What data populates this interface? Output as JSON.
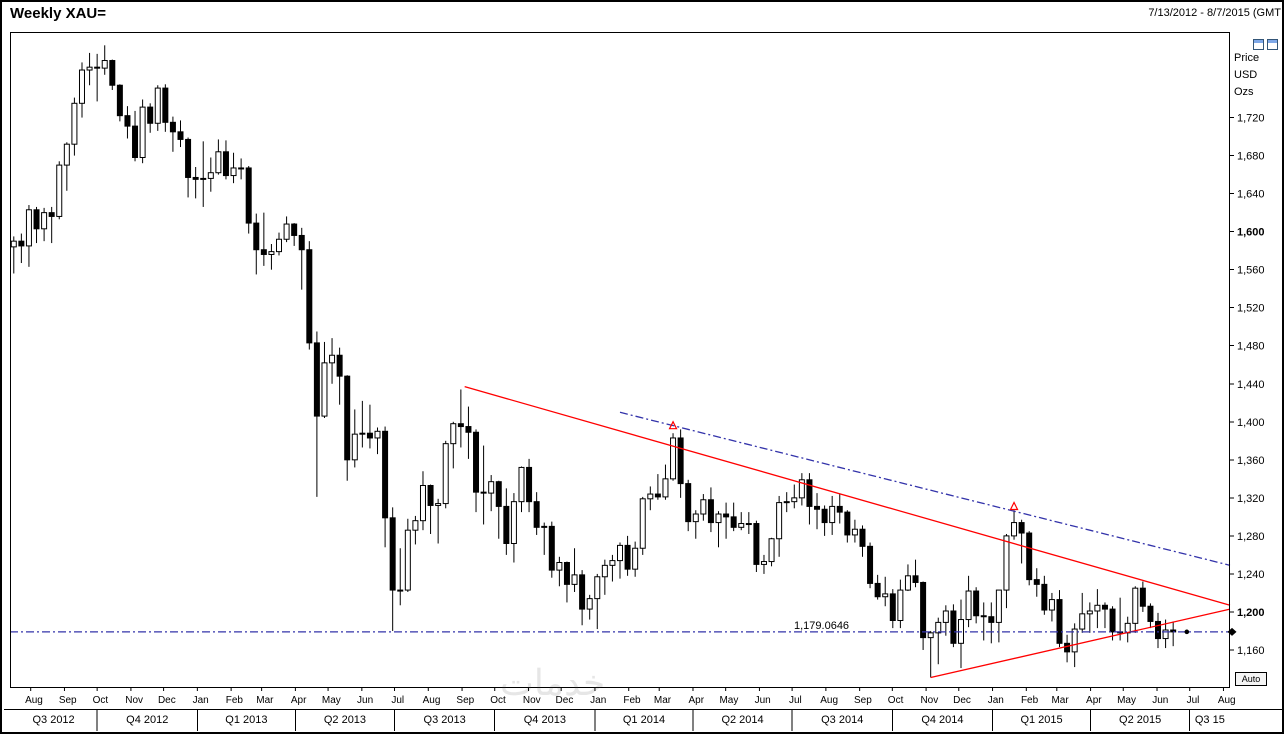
{
  "header": {
    "title": "Weekly XAU=",
    "date_range": "7/13/2012 - 8/7/2015 (GMT"
  },
  "right_axis": {
    "unit_labels": [
      "Price",
      "USD",
      "Ozs"
    ],
    "ticks": [
      {
        "label": "1,720",
        "value": 1720,
        "bold": false
      },
      {
        "label": "1,680",
        "value": 1680,
        "bold": false
      },
      {
        "label": "1,640",
        "value": 1640,
        "bold": false
      },
      {
        "label": "1,600",
        "value": 1600,
        "bold": true
      },
      {
        "label": "1,560",
        "value": 1560,
        "bold": false
      },
      {
        "label": "1,520",
        "value": 1520,
        "bold": false
      },
      {
        "label": "1,480",
        "value": 1480,
        "bold": false
      },
      {
        "label": "1,440",
        "value": 1440,
        "bold": false
      },
      {
        "label": "1,400",
        "value": 1400,
        "bold": false
      },
      {
        "label": "1,360",
        "value": 1360,
        "bold": false
      },
      {
        "label": "1,320",
        "value": 1320,
        "bold": false
      },
      {
        "label": "1,280",
        "value": 1280,
        "bold": false
      },
      {
        "label": "1,240",
        "value": 1240,
        "bold": false
      },
      {
        "label": "1,200",
        "value": 1200,
        "bold": true
      },
      {
        "label": "1,160",
        "value": 1160,
        "bold": false
      }
    ]
  },
  "x_axis": {
    "months": [
      "Aug",
      "Sep",
      "Oct",
      "Nov",
      "Dec",
      "Jan",
      "Feb",
      "Mar",
      "Apr",
      "May",
      "Jun",
      "Jul",
      "Aug",
      "Sep",
      "Oct",
      "Nov",
      "Dec",
      "Jan",
      "Feb",
      "Mar",
      "Apr",
      "May",
      "Jun",
      "Jul",
      "Aug",
      "Sep",
      "Oct",
      "Nov",
      "Dec",
      "Jan",
      "Feb",
      "Mar",
      "Apr",
      "May",
      "Jun",
      "Jul",
      "Aug"
    ],
    "quarters": [
      "Q3 2012",
      "Q4 2012",
      "Q1 2013",
      "Q2 2013",
      "Q3 2013",
      "Q4 2013",
      "Q1 2014",
      "Q2 2014",
      "Q3 2014",
      "Q4 2014",
      "Q1 2015",
      "Q2 2015",
      "Q3 15"
    ]
  },
  "controls": {
    "auto_label": "Auto"
  },
  "watermark_text": "خدمات",
  "colors": {
    "candle": "#000000",
    "trend_red": "#ff0000",
    "channel_blue": "#3333aa",
    "hline_blue": "#3333aa"
  },
  "chart_data": {
    "type": "candlestick",
    "title": "Weekly XAU=",
    "instrument": "XAU=",
    "interval": "weekly",
    "start_date": "2012-07-13",
    "end_date": "2015-08-07",
    "ylim": [
      1120,
      1810
    ],
    "x_total_weeks": 161,
    "horizontal_line": {
      "value": 1179.0646,
      "label": "1,179.0646"
    },
    "last_price": 1179.0646,
    "markers": [
      {
        "week": 87,
        "price": 1398,
        "shape": "red-arrow"
      },
      {
        "week": 132,
        "price": 1313,
        "shape": "red-arrow"
      }
    ],
    "trendlines": [
      {
        "label": "descending-resistance",
        "color": "red",
        "style": "solid",
        "from_week": 59.5,
        "from_price": 1437,
        "to_week": 160.5,
        "to_price": 1207
      },
      {
        "label": "ascending-support",
        "color": "red",
        "style": "solid",
        "from_week": 121,
        "from_price": 1131,
        "to_week": 160.5,
        "to_price": 1203
      },
      {
        "label": "descending-channel",
        "color": "blue",
        "style": "dash-dot",
        "from_week": 80,
        "from_price": 1410,
        "to_week": 160.5,
        "to_price": 1249
      }
    ],
    "ohlc": [
      [
        1584,
        1595,
        1556,
        1590
      ],
      [
        1590,
        1598,
        1567,
        1585
      ],
      [
        1585,
        1628,
        1563,
        1623
      ],
      [
        1623,
        1626,
        1588,
        1603
      ],
      [
        1603,
        1625,
        1590,
        1620
      ],
      [
        1620,
        1626,
        1588,
        1616
      ],
      [
        1616,
        1674,
        1613,
        1670
      ],
      [
        1670,
        1694,
        1643,
        1692
      ],
      [
        1692,
        1741,
        1680,
        1735
      ],
      [
        1735,
        1778,
        1720,
        1770
      ],
      [
        1770,
        1788,
        1754,
        1773
      ],
      [
        1773,
        1787,
        1737,
        1772
      ],
      [
        1772,
        1796,
        1765,
        1780
      ],
      [
        1780,
        1781,
        1749,
        1754
      ],
      [
        1754,
        1755,
        1716,
        1722
      ],
      [
        1722,
        1732,
        1698,
        1711
      ],
      [
        1711,
        1727,
        1674,
        1678
      ],
      [
        1678,
        1739,
        1672,
        1731
      ],
      [
        1731,
        1735,
        1704,
        1714
      ],
      [
        1714,
        1754,
        1706,
        1751
      ],
      [
        1751,
        1755,
        1705,
        1715
      ],
      [
        1715,
        1721,
        1684,
        1705
      ],
      [
        1705,
        1717,
        1689,
        1697
      ],
      [
        1697,
        1699,
        1636,
        1657
      ],
      [
        1657,
        1668,
        1635,
        1655
      ],
      [
        1655,
        1695,
        1626,
        1656
      ],
      [
        1656,
        1678,
        1642,
        1662
      ],
      [
        1662,
        1697,
        1660,
        1684
      ],
      [
        1684,
        1696,
        1655,
        1659
      ],
      [
        1659,
        1683,
        1651,
        1667
      ],
      [
        1667,
        1677,
        1655,
        1667
      ],
      [
        1667,
        1669,
        1598,
        1609
      ],
      [
        1609,
        1619,
        1555,
        1581
      ],
      [
        1581,
        1620,
        1564,
        1576
      ],
      [
        1576,
        1587,
        1560,
        1579
      ],
      [
        1579,
        1599,
        1575,
        1592
      ],
      [
        1592,
        1616,
        1589,
        1608
      ],
      [
        1608,
        1609,
        1585,
        1596
      ],
      [
        1596,
        1604,
        1539,
        1581
      ],
      [
        1581,
        1590,
        1476,
        1483
      ],
      [
        1483,
        1495,
        1321,
        1406
      ],
      [
        1406,
        1484,
        1404,
        1462
      ],
      [
        1462,
        1488,
        1440,
        1470
      ],
      [
        1470,
        1478,
        1418,
        1448
      ],
      [
        1448,
        1449,
        1338,
        1360
      ],
      [
        1360,
        1413,
        1352,
        1387
      ],
      [
        1387,
        1422,
        1373,
        1388
      ],
      [
        1388,
        1418,
        1372,
        1383
      ],
      [
        1383,
        1394,
        1366,
        1390
      ],
      [
        1390,
        1395,
        1268,
        1299
      ],
      [
        1299,
        1310,
        1180,
        1223
      ],
      [
        1223,
        1267,
        1207,
        1223
      ],
      [
        1223,
        1298,
        1221,
        1286
      ],
      [
        1286,
        1301,
        1271,
        1296
      ],
      [
        1296,
        1348,
        1286,
        1333
      ],
      [
        1333,
        1334,
        1282,
        1312
      ],
      [
        1312,
        1319,
        1272,
        1314
      ],
      [
        1314,
        1380,
        1309,
        1377
      ],
      [
        1377,
        1400,
        1351,
        1398
      ],
      [
        1398,
        1434,
        1373,
        1395
      ],
      [
        1395,
        1416,
        1361,
        1389
      ],
      [
        1389,
        1392,
        1305,
        1326
      ],
      [
        1326,
        1375,
        1292,
        1325
      ],
      [
        1325,
        1344,
        1306,
        1337
      ],
      [
        1337,
        1338,
        1277,
        1311
      ],
      [
        1311,
        1330,
        1260,
        1272
      ],
      [
        1272,
        1325,
        1252,
        1316
      ],
      [
        1316,
        1353,
        1305,
        1352
      ],
      [
        1352,
        1361,
        1305,
        1316
      ],
      [
        1316,
        1326,
        1281,
        1289
      ],
      [
        1289,
        1294,
        1260,
        1290
      ],
      [
        1290,
        1295,
        1236,
        1244
      ],
      [
        1244,
        1258,
        1227,
        1252
      ],
      [
        1252,
        1253,
        1210,
        1229
      ],
      [
        1229,
        1267,
        1221,
        1239
      ],
      [
        1239,
        1244,
        1186,
        1203
      ],
      [
        1203,
        1218,
        1192,
        1214
      ],
      [
        1214,
        1240,
        1182,
        1237
      ],
      [
        1237,
        1255,
        1218,
        1249
      ],
      [
        1249,
        1260,
        1232,
        1254
      ],
      [
        1254,
        1273,
        1235,
        1270
      ],
      [
        1270,
        1280,
        1238,
        1245
      ],
      [
        1245,
        1274,
        1237,
        1267
      ],
      [
        1267,
        1321,
        1260,
        1319
      ],
      [
        1319,
        1332,
        1307,
        1324
      ],
      [
        1324,
        1345,
        1318,
        1321
      ],
      [
        1321,
        1355,
        1318,
        1340
      ],
      [
        1340,
        1388,
        1338,
        1383
      ],
      [
        1383,
        1392,
        1320,
        1335
      ],
      [
        1335,
        1339,
        1285,
        1295
      ],
      [
        1295,
        1307,
        1277,
        1303
      ],
      [
        1303,
        1324,
        1296,
        1318
      ],
      [
        1318,
        1331,
        1284,
        1294
      ],
      [
        1294,
        1306,
        1268,
        1303
      ],
      [
        1303,
        1315,
        1277,
        1300
      ],
      [
        1300,
        1315,
        1285,
        1289
      ],
      [
        1289,
        1305,
        1286,
        1293
      ],
      [
        1293,
        1305,
        1282,
        1293
      ],
      [
        1293,
        1296,
        1242,
        1250
      ],
      [
        1250,
        1260,
        1240,
        1253
      ],
      [
        1253,
        1278,
        1248,
        1277
      ],
      [
        1277,
        1322,
        1258,
        1315
      ],
      [
        1315,
        1326,
        1305,
        1316
      ],
      [
        1316,
        1334,
        1309,
        1320
      ],
      [
        1320,
        1346,
        1312,
        1339
      ],
      [
        1339,
        1346,
        1292,
        1311
      ],
      [
        1311,
        1325,
        1287,
        1308
      ],
      [
        1308,
        1312,
        1280,
        1294
      ],
      [
        1294,
        1322,
        1281,
        1311
      ],
      [
        1311,
        1324,
        1293,
        1305
      ],
      [
        1305,
        1307,
        1273,
        1281
      ],
      [
        1281,
        1297,
        1273,
        1287
      ],
      [
        1287,
        1291,
        1258,
        1269
      ],
      [
        1269,
        1273,
        1225,
        1230
      ],
      [
        1230,
        1239,
        1213,
        1216
      ],
      [
        1216,
        1237,
        1206,
        1219
      ],
      [
        1219,
        1224,
        1183,
        1191
      ],
      [
        1191,
        1234,
        1183,
        1223
      ],
      [
        1223,
        1250,
        1222,
        1238
      ],
      [
        1238,
        1255,
        1226,
        1231
      ],
      [
        1231,
        1232,
        1160,
        1173
      ],
      [
        1173,
        1180,
        1131,
        1178
      ],
      [
        1178,
        1194,
        1145,
        1189
      ],
      [
        1189,
        1207,
        1175,
        1201
      ],
      [
        1201,
        1208,
        1163,
        1167
      ],
      [
        1167,
        1213,
        1141,
        1192
      ],
      [
        1192,
        1238,
        1184,
        1222
      ],
      [
        1222,
        1226,
        1188,
        1196
      ],
      [
        1196,
        1210,
        1170,
        1195
      ],
      [
        1195,
        1210,
        1167,
        1189
      ],
      [
        1189,
        1223,
        1168,
        1223
      ],
      [
        1223,
        1282,
        1204,
        1280
      ],
      [
        1280,
        1307,
        1276,
        1294
      ],
      [
        1294,
        1297,
        1251,
        1283
      ],
      [
        1283,
        1285,
        1228,
        1234
      ],
      [
        1234,
        1246,
        1216,
        1229
      ],
      [
        1229,
        1238,
        1197,
        1202
      ],
      [
        1202,
        1220,
        1190,
        1213
      ],
      [
        1213,
        1223,
        1163,
        1167
      ],
      [
        1167,
        1176,
        1147,
        1158
      ],
      [
        1158,
        1188,
        1142,
        1182
      ],
      [
        1182,
        1220,
        1178,
        1198
      ],
      [
        1198,
        1210,
        1178,
        1201
      ],
      [
        1201,
        1224,
        1183,
        1207
      ],
      [
        1207,
        1210,
        1183,
        1203
      ],
      [
        1203,
        1206,
        1170,
        1179
      ],
      [
        1179,
        1215,
        1170,
        1178
      ],
      [
        1178,
        1195,
        1168,
        1188
      ],
      [
        1188,
        1227,
        1178,
        1225
      ],
      [
        1225,
        1232,
        1200,
        1206
      ],
      [
        1206,
        1209,
        1183,
        1190
      ],
      [
        1190,
        1199,
        1162,
        1172
      ],
      [
        1172,
        1192,
        1162,
        1181
      ],
      [
        1181,
        1190,
        1164,
        1179
      ]
    ]
  }
}
